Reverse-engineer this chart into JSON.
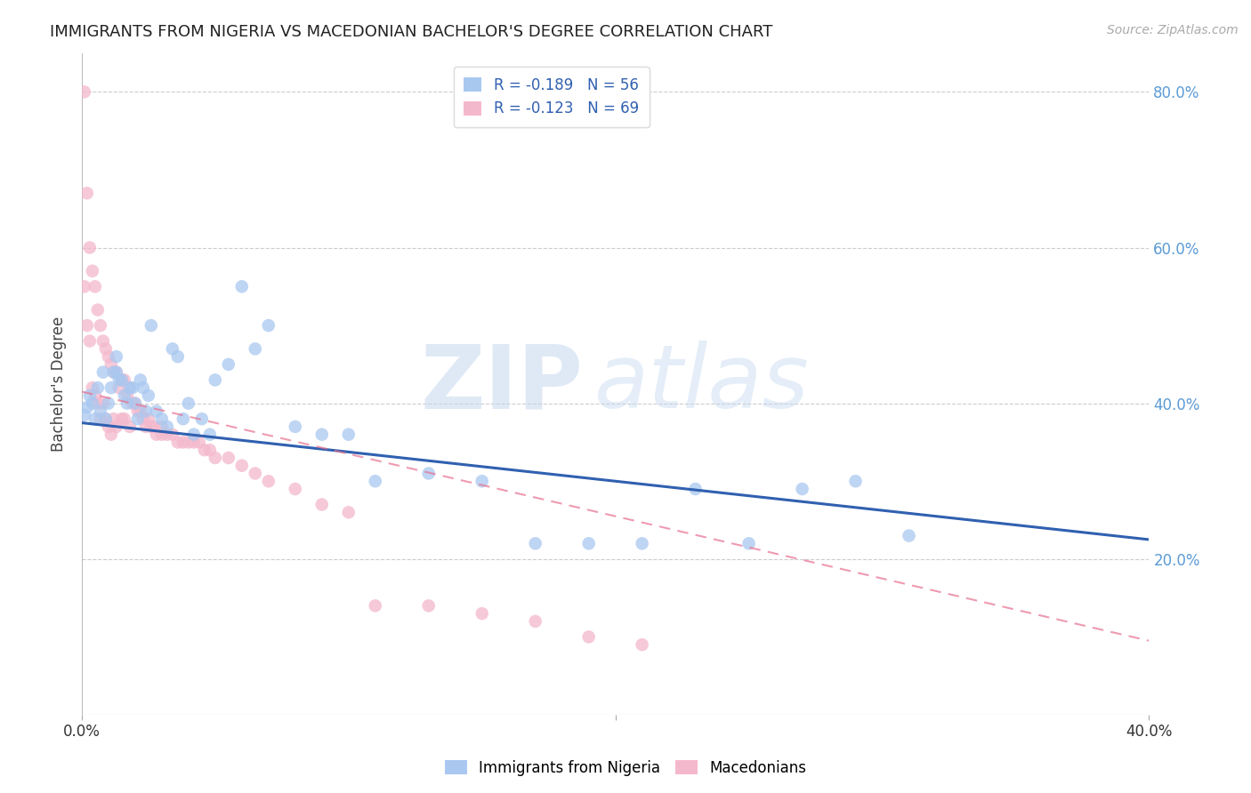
{
  "title": "IMMIGRANTS FROM NIGERIA VS MACEDONIAN BACHELOR'S DEGREE CORRELATION CHART",
  "source": "Source: ZipAtlas.com",
  "ylabel": "Bachelor's Degree",
  "watermark_zip": "ZIP",
  "watermark_atlas": "atlas",
  "legend_blue_label": "R = ",
  "legend_blue_r": "-0.189",
  "legend_blue_n_label": "   N = ",
  "legend_blue_n": "56",
  "legend_pink_r": "-0.123",
  "legend_pink_n": "69",
  "bottom_legend_blue": "Immigrants from Nigeria",
  "bottom_legend_pink": "Macedonians",
  "blue_scatter_x": [
    0.001,
    0.002,
    0.003,
    0.004,
    0.005,
    0.006,
    0.007,
    0.008,
    0.009,
    0.01,
    0.011,
    0.012,
    0.013,
    0.013,
    0.014,
    0.015,
    0.016,
    0.017,
    0.018,
    0.019,
    0.02,
    0.021,
    0.022,
    0.023,
    0.024,
    0.025,
    0.026,
    0.028,
    0.03,
    0.032,
    0.034,
    0.036,
    0.038,
    0.04,
    0.042,
    0.045,
    0.048,
    0.05,
    0.055,
    0.06,
    0.065,
    0.07,
    0.08,
    0.09,
    0.1,
    0.11,
    0.13,
    0.15,
    0.17,
    0.19,
    0.21,
    0.23,
    0.25,
    0.27,
    0.29,
    0.31
  ],
  "blue_scatter_y": [
    0.385,
    0.395,
    0.41,
    0.4,
    0.38,
    0.42,
    0.39,
    0.44,
    0.38,
    0.4,
    0.42,
    0.44,
    0.46,
    0.44,
    0.43,
    0.43,
    0.41,
    0.4,
    0.42,
    0.42,
    0.4,
    0.38,
    0.43,
    0.42,
    0.39,
    0.41,
    0.5,
    0.39,
    0.38,
    0.37,
    0.47,
    0.46,
    0.38,
    0.4,
    0.36,
    0.38,
    0.36,
    0.43,
    0.45,
    0.55,
    0.47,
    0.5,
    0.37,
    0.36,
    0.36,
    0.3,
    0.31,
    0.3,
    0.22,
    0.22,
    0.22,
    0.29,
    0.22,
    0.29,
    0.3,
    0.23
  ],
  "pink_scatter_x": [
    0.001,
    0.001,
    0.002,
    0.002,
    0.003,
    0.003,
    0.004,
    0.004,
    0.005,
    0.005,
    0.006,
    0.006,
    0.007,
    0.007,
    0.008,
    0.008,
    0.009,
    0.009,
    0.01,
    0.01,
    0.011,
    0.011,
    0.012,
    0.012,
    0.013,
    0.013,
    0.014,
    0.015,
    0.015,
    0.016,
    0.016,
    0.017,
    0.018,
    0.018,
    0.019,
    0.02,
    0.021,
    0.022,
    0.023,
    0.024,
    0.025,
    0.026,
    0.027,
    0.028,
    0.03,
    0.03,
    0.032,
    0.034,
    0.036,
    0.038,
    0.04,
    0.042,
    0.044,
    0.046,
    0.048,
    0.05,
    0.055,
    0.06,
    0.065,
    0.07,
    0.08,
    0.09,
    0.1,
    0.11,
    0.13,
    0.15,
    0.17,
    0.19,
    0.21
  ],
  "pink_scatter_y": [
    0.8,
    0.55,
    0.67,
    0.5,
    0.6,
    0.48,
    0.57,
    0.42,
    0.55,
    0.41,
    0.52,
    0.4,
    0.5,
    0.38,
    0.48,
    0.4,
    0.47,
    0.38,
    0.46,
    0.37,
    0.45,
    0.36,
    0.44,
    0.38,
    0.44,
    0.37,
    0.42,
    0.43,
    0.38,
    0.43,
    0.38,
    0.41,
    0.42,
    0.37,
    0.4,
    0.4,
    0.39,
    0.39,
    0.38,
    0.37,
    0.38,
    0.37,
    0.37,
    0.36,
    0.37,
    0.36,
    0.36,
    0.36,
    0.35,
    0.35,
    0.35,
    0.35,
    0.35,
    0.34,
    0.34,
    0.33,
    0.33,
    0.32,
    0.31,
    0.3,
    0.29,
    0.27,
    0.26,
    0.14,
    0.14,
    0.13,
    0.12,
    0.1,
    0.09
  ],
  "blue_line_x": [
    0.0,
    0.4
  ],
  "blue_line_y": [
    0.375,
    0.225
  ],
  "pink_line_x": [
    0.0,
    0.05,
    0.1,
    0.15,
    0.2,
    0.25,
    0.3,
    0.35,
    0.4
  ],
  "pink_line_y": [
    0.415,
    0.375,
    0.335,
    0.295,
    0.255,
    0.215,
    0.175,
    0.135,
    0.095
  ],
  "xlim": [
    0.0,
    0.4
  ],
  "ylim": [
    0.0,
    0.85
  ],
  "blue_color": "#a8c8f0",
  "pink_color": "#f4b8cc",
  "blue_line_color": "#3060b0",
  "pink_line_color": "#e87090",
  "grid_color": "#cccccc",
  "right_axis_color": "#5b9bd5",
  "accent_color": "#3060b0",
  "background_color": "#ffffff"
}
